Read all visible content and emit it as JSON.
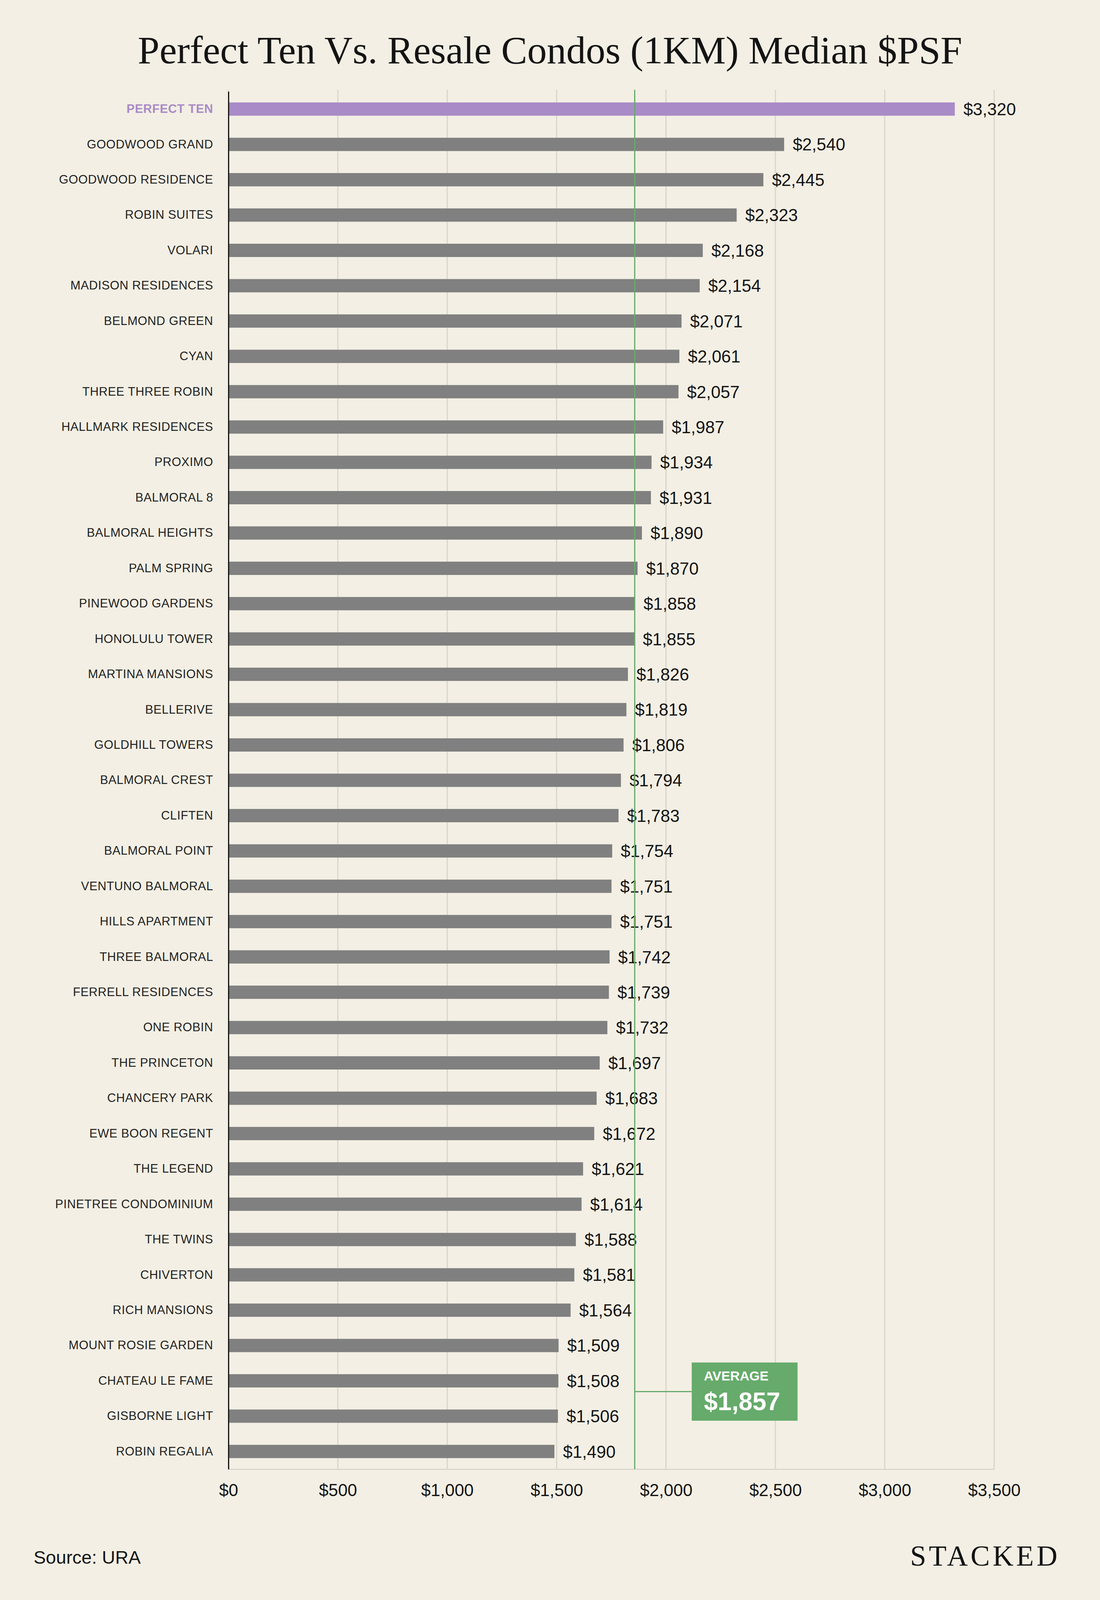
{
  "chart_data": {
    "type": "bar",
    "title": "Perfect Ten Vs. Resale Condos (1KM) Median $PSF",
    "orientation": "horizontal",
    "categories": [
      "PERFECT TEN",
      "GOODWOOD GRAND",
      "GOODWOOD RESIDENCE",
      "ROBIN SUITES",
      "VOLARI",
      "MADISON RESIDENCES",
      "BELMOND GREEN",
      "CYAN",
      "THREE THREE ROBIN",
      "HALLMARK RESIDENCES",
      "PROXIMO",
      "BALMORAL 8",
      "BALMORAL HEIGHTS",
      "PALM SPRING",
      "PINEWOOD GARDENS",
      "HONOLULU TOWER",
      "MARTINA MANSIONS",
      "BELLERIVE",
      "GOLDHILL TOWERS",
      "BALMORAL CREST",
      "CLIFTEN",
      "BALMORAL POINT",
      "VENTUNO BALMORAL",
      "HILLS APARTMENT",
      "THREE BALMORAL",
      "FERRELL RESIDENCES",
      "ONE ROBIN",
      "THE PRINCETON",
      "CHANCERY PARK",
      "EWE BOON REGENT",
      "THE LEGEND",
      "PINETREE CONDOMINIUM",
      "THE TWINS",
      "CHIVERTON",
      "RICH MANSIONS",
      "MOUNT ROSIE GARDEN",
      "CHATEAU LE FAME",
      "GISBORNE LIGHT",
      "ROBIN REGALIA"
    ],
    "values": [
      3320,
      2540,
      2445,
      2323,
      2168,
      2154,
      2071,
      2061,
      2057,
      1987,
      1934,
      1931,
      1890,
      1870,
      1858,
      1855,
      1826,
      1819,
      1806,
      1794,
      1783,
      1754,
      1751,
      1751,
      1742,
      1739,
      1732,
      1697,
      1683,
      1672,
      1621,
      1614,
      1588,
      1581,
      1564,
      1509,
      1508,
      1506,
      1490
    ],
    "value_labels": [
      "$3,320",
      "$2,540",
      "$2,445",
      "$2,323",
      "$2,168",
      "$2,154",
      "$2,071",
      "$2,061",
      "$2,057",
      "$1,987",
      "$1,934",
      "$1,931",
      "$1,890",
      "$1,870",
      "$1,858",
      "$1,855",
      "$1,826",
      "$1,819",
      "$1,806",
      "$1,794",
      "$1,783",
      "$1,754",
      "$1,751",
      "$1,751",
      "$1,742",
      "$1,739",
      "$1,732",
      "$1,697",
      "$1,683",
      "$1,672",
      "$1,621",
      "$1,614",
      "$1,588",
      "$1,581",
      "$1,564",
      "$1,509",
      "$1,508",
      "$1,506",
      "$1,490"
    ],
    "data_labels": true,
    "color": "#808080",
    "colors": [
      "#a98bc7",
      "#808080",
      "#808080",
      "#808080",
      "#808080",
      "#808080",
      "#808080",
      "#808080",
      "#808080",
      "#808080",
      "#808080",
      "#808080",
      "#808080",
      "#808080",
      "#808080",
      "#808080",
      "#808080",
      "#808080",
      "#808080",
      "#808080",
      "#808080",
      "#808080",
      "#808080",
      "#808080",
      "#808080",
      "#808080",
      "#808080",
      "#808080",
      "#808080",
      "#808080",
      "#808080",
      "#808080",
      "#808080",
      "#808080",
      "#808080",
      "#808080",
      "#808080",
      "#808080",
      "#808080"
    ],
    "xlim": [
      0,
      3500
    ],
    "xticks": [
      {
        "value": 0,
        "label": "$0"
      },
      {
        "value": 500,
        "label": "$500"
      },
      {
        "value": 1000,
        "label": "$1,000"
      },
      {
        "value": 1500,
        "label": "$1,500"
      },
      {
        "value": 2000,
        "label": "$2,000"
      },
      {
        "value": 2500,
        "label": "$2,500"
      },
      {
        "value": 3000,
        "label": "$3,000"
      },
      {
        "value": 3500,
        "label": "$3,500"
      }
    ],
    "grid": true,
    "annotations": [
      {
        "text": "AVERAGE",
        "value": 1857,
        "label": "$1,857"
      }
    ],
    "source": "Source: URA",
    "brand": "STACKED"
  }
}
